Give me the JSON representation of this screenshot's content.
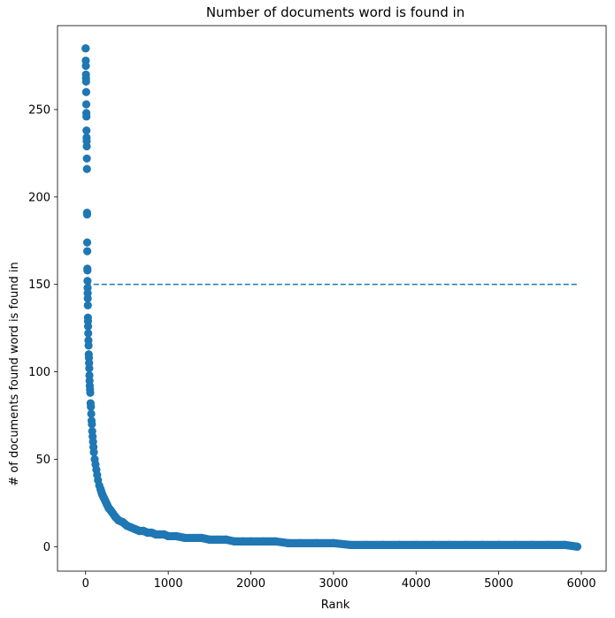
{
  "chart_data": {
    "type": "scatter",
    "title": "Number of documents word is found in",
    "xlabel": "Rank",
    "ylabel": "# of documents found word is found in",
    "xlim": [
      -340,
      6300
    ],
    "ylim": [
      -14,
      298
    ],
    "x_ticks": [
      0,
      1000,
      2000,
      3000,
      4000,
      5000,
      6000
    ],
    "y_ticks": [
      0,
      50,
      100,
      150,
      200,
      250
    ],
    "grid": false,
    "color": "#1f77b4",
    "reference_line": {
      "y": 150,
      "x_start": 0,
      "x_end": 5950,
      "style": "dashed"
    },
    "series": [
      {
        "x": [
          0,
          1,
          2,
          3,
          4,
          5,
          6,
          7,
          8,
          9,
          10,
          11,
          12,
          13,
          14,
          15,
          16,
          17,
          18,
          19,
          20,
          21,
          22,
          23,
          24,
          25,
          26,
          27,
          28,
          29,
          30,
          32,
          34,
          36,
          38,
          40,
          42,
          44,
          46,
          48,
          50,
          53,
          56,
          60,
          64,
          68,
          72,
          76,
          80,
          85,
          90,
          95,
          100,
          110,
          120,
          130,
          140,
          150,
          165,
          180,
          200,
          220,
          240,
          260,
          280,
          300,
          330,
          360,
          400,
          450,
          500,
          550,
          600,
          650,
          700,
          750,
          800,
          850,
          900,
          950,
          1000,
          1100,
          1200,
          1300,
          1400,
          1500,
          1600,
          1700,
          1800,
          1900,
          2000,
          2150,
          2300,
          2450,
          2600,
          2800,
          3000,
          3200,
          3400,
          3600,
          3800,
          4000,
          4200,
          4400,
          4600,
          4800,
          5000,
          5200,
          5400,
          5600,
          5800,
          5950
        ],
        "y": [
          285,
          285,
          278,
          275,
          270,
          268,
          266,
          260,
          253,
          248,
          246,
          238,
          234,
          232,
          229,
          222,
          216,
          191,
          190,
          174,
          169,
          159,
          158,
          152,
          148,
          145,
          142,
          138,
          131,
          129,
          126,
          122,
          118,
          115,
          110,
          108,
          105,
          102,
          98,
          95,
          92,
          90,
          88,
          82,
          80,
          76,
          72,
          70,
          66,
          63,
          60,
          57,
          54,
          50,
          47,
          44,
          41,
          38,
          35,
          33,
          30,
          28,
          26,
          24,
          22,
          21,
          19,
          17,
          15,
          14,
          12,
          11,
          10,
          9,
          9,
          8,
          8,
          7,
          7,
          7,
          6,
          6,
          5,
          5,
          5,
          4,
          4,
          4,
          3,
          3,
          3,
          3,
          3,
          2,
          2,
          2,
          2,
          1,
          1,
          1,
          1,
          1,
          1,
          1,
          1,
          1,
          1,
          1,
          1,
          1,
          1,
          0
        ]
      }
    ]
  }
}
